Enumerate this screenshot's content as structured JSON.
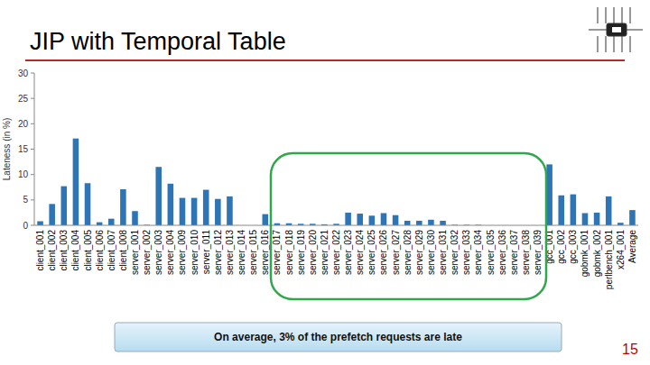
{
  "slide": {
    "title": "JIP with Temporal Table",
    "callout": "On average, 3% of the prefetch requests are late",
    "page_number": "15"
  },
  "chart_data": {
    "type": "bar",
    "y_label": "Lateness (in %)",
    "categories": [
      "client_001",
      "client_002",
      "client_003",
      "client_004",
      "client_005",
      "client_006",
      "client_007",
      "client_008",
      "server_001",
      "server_002",
      "server_003",
      "server_004",
      "server_009",
      "server_010",
      "server_011",
      "server_012",
      "server_013",
      "server_014",
      "server_015",
      "server_016",
      "server_017",
      "server_018",
      "server_019",
      "server_020",
      "server_021",
      "server_022",
      "server_023",
      "server_024",
      "server_025",
      "server_026",
      "server_027",
      "server_028",
      "server_029",
      "server_030",
      "server_031",
      "server_032",
      "server_033",
      "server_034",
      "server_035",
      "server_036",
      "server_037",
      "server_038",
      "server_039",
      "gcc_001",
      "gcc_002",
      "gcc_003",
      "gobmk_001",
      "gobmk_002",
      "perlbench_001",
      "x264_001",
      "Average"
    ],
    "values": [
      0.8,
      4.2,
      7.7,
      17.1,
      8.3,
      0.6,
      1.3,
      7.1,
      2.8,
      0.1,
      11.5,
      8.2,
      5.4,
      5.4,
      7.0,
      5.2,
      5.7,
      0,
      0,
      2.2,
      0.4,
      0.4,
      0.3,
      0.3,
      0.2,
      0.3,
      2.5,
      2.3,
      1.9,
      2.4,
      2.0,
      0.9,
      0.9,
      1.1,
      0.9,
      0.1,
      0.1,
      0.1,
      0,
      0,
      0,
      0,
      0,
      12.0,
      5.9,
      6.1,
      2.4,
      2.5,
      5.7,
      0.5,
      3.0
    ],
    "color": "#2e75b6",
    "ylim": [
      0,
      30
    ],
    "yticks": [
      0,
      5,
      10,
      15,
      20,
      25,
      30
    ],
    "grid": false
  }
}
